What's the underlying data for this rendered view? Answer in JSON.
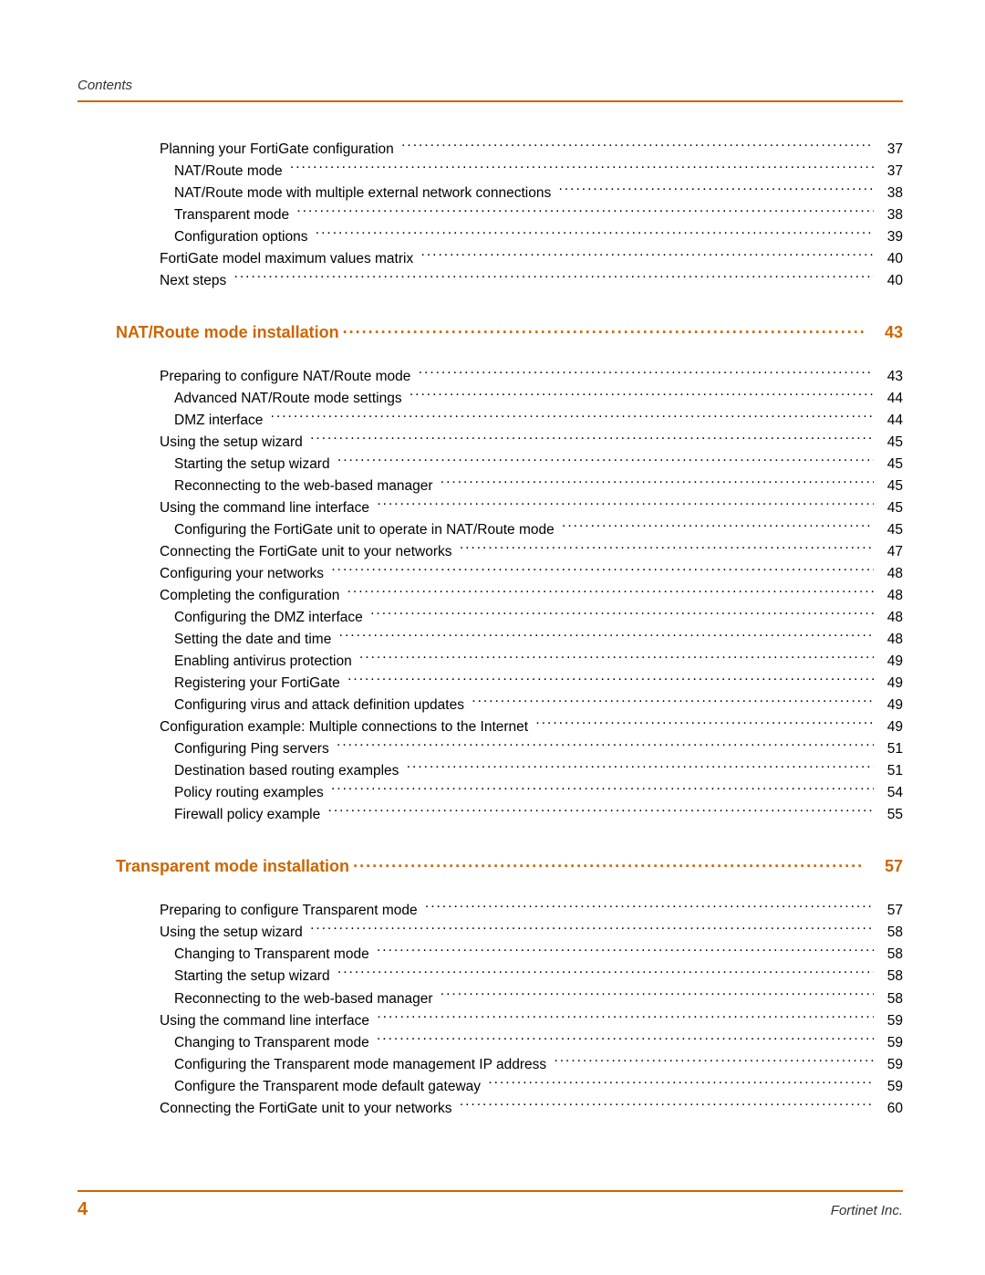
{
  "colors": {
    "accent": "#cc6600",
    "text": "#000000",
    "background": "#ffffff"
  },
  "typography": {
    "body_font": "Arial",
    "body_size_pt": 11,
    "heading_size_pt": 13,
    "heading_weight": "bold"
  },
  "header": {
    "label": "Contents"
  },
  "footer": {
    "page_number": "4",
    "brand": "Fortinet Inc."
  },
  "sections": [
    {
      "heading": null,
      "entries": [
        {
          "level": 1,
          "text": "Planning your FortiGate configuration",
          "page": "37"
        },
        {
          "level": 2,
          "text": "NAT/Route mode",
          "page": "37"
        },
        {
          "level": 2,
          "text": "NAT/Route mode with multiple external network connections",
          "page": "38"
        },
        {
          "level": 2,
          "text": "Transparent mode",
          "page": "38"
        },
        {
          "level": 2,
          "text": "Configuration options",
          "page": "39"
        },
        {
          "level": 1,
          "text": "FortiGate model maximum values matrix",
          "page": "40"
        },
        {
          "level": 1,
          "text": "Next steps",
          "page": "40"
        }
      ]
    },
    {
      "heading": {
        "text": "NAT/Route mode installation",
        "page": "43"
      },
      "entries": [
        {
          "level": 1,
          "text": "Preparing to configure NAT/Route mode",
          "page": "43"
        },
        {
          "level": 2,
          "text": "Advanced NAT/Route mode settings",
          "page": "44"
        },
        {
          "level": 2,
          "text": "DMZ interface",
          "page": "44"
        },
        {
          "level": 1,
          "text": "Using the setup wizard",
          "page": "45"
        },
        {
          "level": 2,
          "text": "Starting the setup wizard",
          "page": "45"
        },
        {
          "level": 2,
          "text": "Reconnecting to the web-based manager",
          "page": "45"
        },
        {
          "level": 1,
          "text": "Using the command line interface",
          "page": "45"
        },
        {
          "level": 2,
          "text": "Configuring the FortiGate unit to operate in NAT/Route mode",
          "page": "45"
        },
        {
          "level": 1,
          "text": "Connecting the FortiGate unit to your networks",
          "page": "47"
        },
        {
          "level": 1,
          "text": "Configuring your networks",
          "page": "48"
        },
        {
          "level": 1,
          "text": "Completing the configuration",
          "page": "48"
        },
        {
          "level": 2,
          "text": "Configuring the DMZ interface",
          "page": "48"
        },
        {
          "level": 2,
          "text": "Setting the date and time",
          "page": "48"
        },
        {
          "level": 2,
          "text": "Enabling antivirus protection",
          "page": "49"
        },
        {
          "level": 2,
          "text": "Registering your FortiGate",
          "page": "49"
        },
        {
          "level": 2,
          "text": "Configuring virus and attack definition updates",
          "page": "49"
        },
        {
          "level": 1,
          "text": "Configuration example: Multiple connections to the Internet",
          "page": "49"
        },
        {
          "level": 2,
          "text": "Configuring Ping servers",
          "page": "51"
        },
        {
          "level": 2,
          "text": "Destination based routing examples",
          "page": "51"
        },
        {
          "level": 2,
          "text": "Policy routing examples",
          "page": "54"
        },
        {
          "level": 2,
          "text": "Firewall policy example",
          "page": "55"
        }
      ]
    },
    {
      "heading": {
        "text": "Transparent mode installation",
        "page": "57"
      },
      "entries": [
        {
          "level": 1,
          "text": "Preparing to configure Transparent mode",
          "page": "57"
        },
        {
          "level": 1,
          "text": "Using the setup wizard",
          "page": "58"
        },
        {
          "level": 2,
          "text": "Changing to Transparent mode",
          "page": "58"
        },
        {
          "level": 2,
          "text": "Starting the setup wizard",
          "page": "58"
        },
        {
          "level": 2,
          "text": "Reconnecting to the web-based manager",
          "page": "58"
        },
        {
          "level": 1,
          "text": "Using the command line interface",
          "page": "59"
        },
        {
          "level": 2,
          "text": "Changing to Transparent mode",
          "page": "59"
        },
        {
          "level": 2,
          "text": "Configuring the Transparent mode management IP address",
          "page": "59"
        },
        {
          "level": 2,
          "text": "Configure the Transparent mode default gateway",
          "page": "59"
        },
        {
          "level": 1,
          "text": "Connecting the FortiGate unit to your networks",
          "page": "60"
        }
      ]
    }
  ]
}
